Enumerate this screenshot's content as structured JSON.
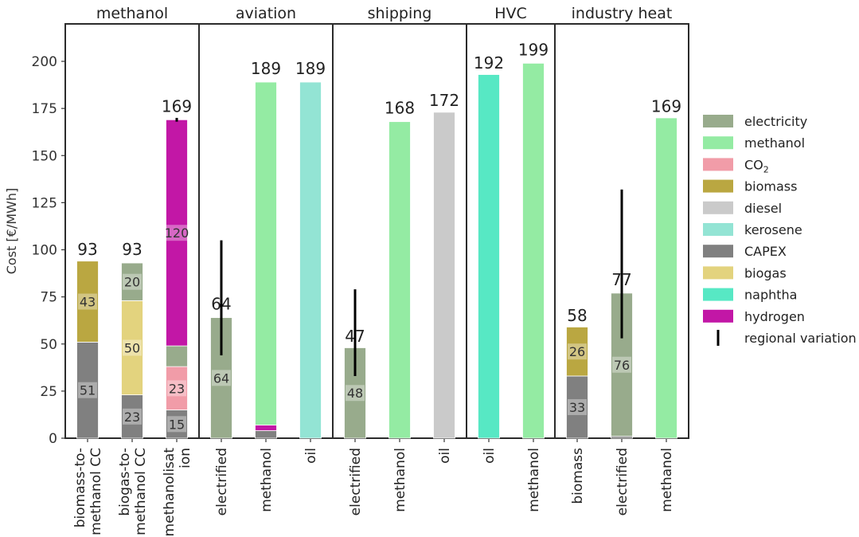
{
  "chart_data": {
    "type": "bar",
    "stacked": true,
    "ylabel": "Cost [€/MWh]",
    "ylim": [
      0,
      220
    ],
    "yticks": [
      0,
      25,
      50,
      75,
      100,
      125,
      150,
      175,
      200
    ],
    "grid": false,
    "legend_position": "right",
    "colors": {
      "electricity": "#98ab8c",
      "methanol": "#94eba3",
      "CO2": "#f19ca8",
      "biomass": "#baa741",
      "diesel": "#cacaca",
      "kerosene": "#93e4d4",
      "CAPEX": "#808080",
      "biogas": "#e3d37e",
      "naphtha": "#57e8c4",
      "hydrogen": "#c217a6"
    },
    "legend": [
      {
        "key": "electricity",
        "label": "electricity"
      },
      {
        "key": "methanol",
        "label": "methanol"
      },
      {
        "key": "CO2",
        "label": "CO",
        "sub": "2"
      },
      {
        "key": "biomass",
        "label": "biomass"
      },
      {
        "key": "diesel",
        "label": "diesel"
      },
      {
        "key": "kerosene",
        "label": "kerosene"
      },
      {
        "key": "CAPEX",
        "label": "CAPEX"
      },
      {
        "key": "biogas",
        "label": "biogas"
      },
      {
        "key": "naphtha",
        "label": "naphtha"
      },
      {
        "key": "hydrogen",
        "label": "hydrogen"
      },
      {
        "key": "regional",
        "label": "regional variation",
        "type": "line"
      }
    ],
    "panels": [
      {
        "title": "methanol",
        "bars": [
          {
            "category": [
              "biomass-to-",
              "methanol CC"
            ],
            "total": 93,
            "segments": [
              {
                "key": "CAPEX",
                "value": 51,
                "label": "51"
              },
              {
                "key": "biomass",
                "value": 43,
                "label": "43"
              }
            ]
          },
          {
            "category": [
              "biogas-to-",
              "methanol CC"
            ],
            "total": 93,
            "segments": [
              {
                "key": "CAPEX",
                "value": 23,
                "label": "23"
              },
              {
                "key": "biogas",
                "value": 50,
                "label": "50"
              },
              {
                "key": "electricity",
                "value": 20,
                "label": "20"
              }
            ]
          },
          {
            "category": [
              "methanolisat",
              "ion"
            ],
            "total": 169,
            "error": [
              168,
              170
            ],
            "segments": [
              {
                "key": "CAPEX",
                "value": 15,
                "label": "15"
              },
              {
                "key": "CO2",
                "value": 23,
                "label": "23"
              },
              {
                "key": "electricity",
                "value": 11,
                "label": ""
              },
              {
                "key": "hydrogen",
                "value": 120,
                "label": "120"
              }
            ]
          }
        ]
      },
      {
        "title": "aviation",
        "bars": [
          {
            "category": [
              "electrified"
            ],
            "total": 64,
            "error": [
              44,
              105
            ],
            "segments": [
              {
                "key": "electricity",
                "value": 64,
                "label": "64"
              }
            ]
          },
          {
            "category": [
              "methanol"
            ],
            "total": 189,
            "segments": [
              {
                "key": "CAPEX",
                "value": 4,
                "label": ""
              },
              {
                "key": "hydrogen",
                "value": 3,
                "label": ""
              },
              {
                "key": "methanol",
                "value": 182,
                "label": ""
              }
            ]
          },
          {
            "category": [
              "oil"
            ],
            "total": 189,
            "segments": [
              {
                "key": "kerosene",
                "value": 189,
                "label": ""
              }
            ]
          }
        ]
      },
      {
        "title": "shipping",
        "bars": [
          {
            "category": [
              "electrified"
            ],
            "total": 47,
            "error": [
              33,
              79
            ],
            "segments": [
              {
                "key": "electricity",
                "value": 48,
                "label": "48"
              }
            ]
          },
          {
            "category": [
              "methanol"
            ],
            "total": 168,
            "segments": [
              {
                "key": "methanol",
                "value": 168,
                "label": ""
              }
            ]
          },
          {
            "category": [
              "oil"
            ],
            "total": 172,
            "segments": [
              {
                "key": "diesel",
                "value": 173,
                "label": ""
              }
            ]
          }
        ]
      },
      {
        "title": "HVC",
        "bars": [
          {
            "category": [
              "oil"
            ],
            "total": 192,
            "segments": [
              {
                "key": "naphtha",
                "value": 193,
                "label": ""
              }
            ]
          },
          {
            "category": [
              "methanol"
            ],
            "total": 199,
            "segments": [
              {
                "key": "methanol",
                "value": 199,
                "label": ""
              }
            ]
          }
        ]
      },
      {
        "title": "industry heat",
        "bars": [
          {
            "category": [
              "biomass"
            ],
            "total": 58,
            "segments": [
              {
                "key": "CAPEX",
                "value": 33,
                "label": "33"
              },
              {
                "key": "biomass",
                "value": 26,
                "label": "26"
              }
            ]
          },
          {
            "category": [
              "electrified"
            ],
            "total": 77,
            "error": [
              53,
              132
            ],
            "segments": [
              {
                "key": "CAPEX",
                "value": 1,
                "label": ""
              },
              {
                "key": "electricity",
                "value": 76,
                "label": "76"
              }
            ]
          },
          {
            "category": [
              "methanol"
            ],
            "total": 169,
            "segments": [
              {
                "key": "methanol",
                "value": 170,
                "label": ""
              }
            ]
          }
        ]
      }
    ]
  }
}
